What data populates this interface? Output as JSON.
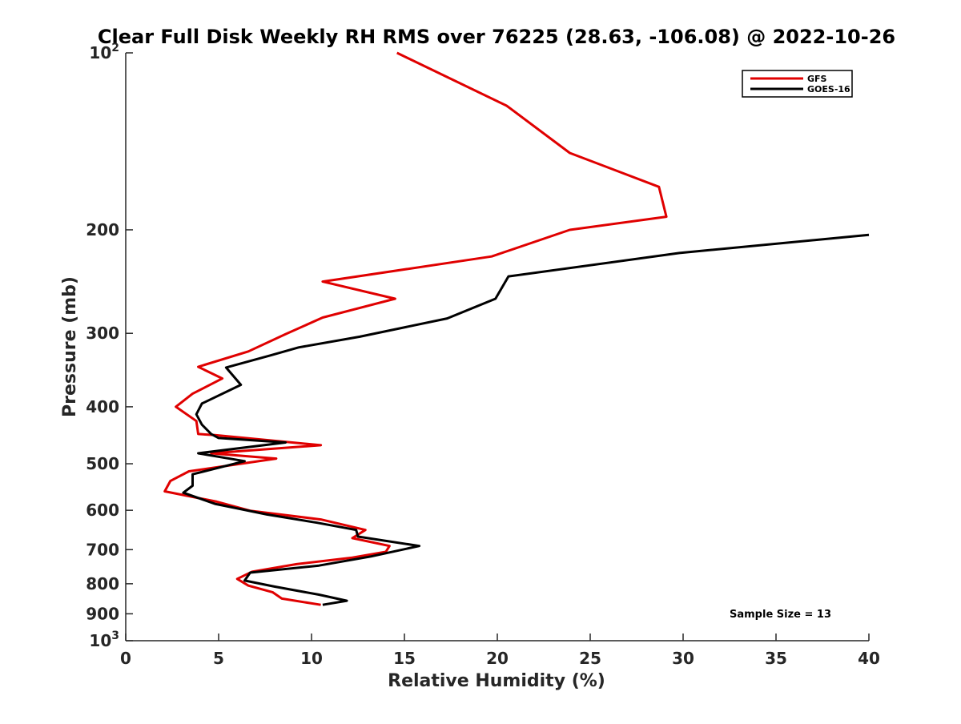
{
  "chart_data": {
    "type": "line",
    "title": "Clear Full Disk Weekly RH RMS over 76225 (28.63, -106.08) @ 2022-10-26",
    "xlabel": "Relative Humidity (%)",
    "ylabel": "Pressure (mb)",
    "xlim": [
      0,
      40
    ],
    "ylim": [
      100,
      1000
    ],
    "yscale": "log",
    "y_reversed": true,
    "grid": false,
    "legend_position": "top-right",
    "x_ticks": [
      0,
      5,
      10,
      15,
      20,
      25,
      30,
      35,
      40
    ],
    "x_tick_labels": [
      "0",
      "5",
      "10",
      "15",
      "20",
      "25",
      "30",
      "35",
      "40"
    ],
    "y_ticks": [
      100,
      200,
      300,
      400,
      500,
      600,
      700,
      800,
      900,
      1000
    ],
    "y_tick_labels": [
      {
        "base": "10",
        "exp": "2"
      },
      {
        "base": "200",
        "exp": ""
      },
      {
        "base": "300",
        "exp": ""
      },
      {
        "base": "400",
        "exp": ""
      },
      {
        "base": "500",
        "exp": ""
      },
      {
        "base": "600",
        "exp": ""
      },
      {
        "base": "700",
        "exp": ""
      },
      {
        "base": "800",
        "exp": ""
      },
      {
        "base": "900",
        "exp": ""
      },
      {
        "base": "10",
        "exp": "3"
      }
    ],
    "annotation": "Sample Size = 13",
    "series": [
      {
        "name": "GFS",
        "color": "#e00000",
        "points": [
          [
            14.6,
            100
          ],
          [
            20.5,
            123
          ],
          [
            23.9,
            148
          ],
          [
            28.7,
            169
          ],
          [
            29.1,
            190
          ],
          [
            23.9,
            200
          ],
          [
            19.7,
            222
          ],
          [
            10.6,
            245
          ],
          [
            14.5,
            262
          ],
          [
            10.6,
            282
          ],
          [
            8.6,
            301
          ],
          [
            6.6,
            322
          ],
          [
            3.9,
            342
          ],
          [
            5.2,
            358
          ],
          [
            3.6,
            380
          ],
          [
            2.7,
            400
          ],
          [
            3.8,
            423
          ],
          [
            3.9,
            445
          ],
          [
            4.8,
            447
          ],
          [
            10.5,
            465
          ],
          [
            4.6,
            480
          ],
          [
            8.1,
            490
          ],
          [
            3.4,
            515
          ],
          [
            2.4,
            535
          ],
          [
            2.1,
            557
          ],
          [
            4.9,
            580
          ],
          [
            6.7,
            601
          ],
          [
            10.5,
            622
          ],
          [
            12.9,
            648
          ],
          [
            12.2,
            669
          ],
          [
            14.2,
            690
          ],
          [
            14.0,
            706
          ],
          [
            12.2,
            722
          ],
          [
            9.2,
            741
          ],
          [
            6.8,
            763
          ],
          [
            6.0,
            785
          ],
          [
            6.6,
            806
          ],
          [
            7.9,
            827
          ],
          [
            8.4,
            848
          ],
          [
            10.5,
            869
          ]
        ]
      },
      {
        "name": "GOES-16",
        "color": "#000000",
        "points": [
          [
            40.0,
            204
          ],
          [
            29.8,
            219
          ],
          [
            20.6,
            240
          ],
          [
            19.9,
            262
          ],
          [
            17.3,
            283
          ],
          [
            12.6,
            304
          ],
          [
            9.3,
            317
          ],
          [
            7.8,
            327
          ],
          [
            5.4,
            343
          ],
          [
            6.2,
            367
          ],
          [
            4.1,
            395
          ],
          [
            3.8,
            412
          ],
          [
            4.1,
            429
          ],
          [
            4.6,
            445
          ],
          [
            5.0,
            452
          ],
          [
            8.6,
            460
          ],
          [
            3.9,
            480
          ],
          [
            6.4,
            495
          ],
          [
            3.6,
            521
          ],
          [
            3.6,
            545
          ],
          [
            3.1,
            560
          ],
          [
            4.8,
            585
          ],
          [
            7.6,
            610
          ],
          [
            10.3,
            630
          ],
          [
            12.4,
            648
          ],
          [
            12.5,
            665
          ],
          [
            15.8,
            690
          ],
          [
            13.2,
            719
          ],
          [
            10.4,
            745
          ],
          [
            6.7,
            766
          ],
          [
            6.4,
            790
          ],
          [
            8.0,
            809
          ],
          [
            10.4,
            835
          ],
          [
            11.9,
            855
          ],
          [
            10.6,
            869
          ]
        ]
      }
    ]
  }
}
